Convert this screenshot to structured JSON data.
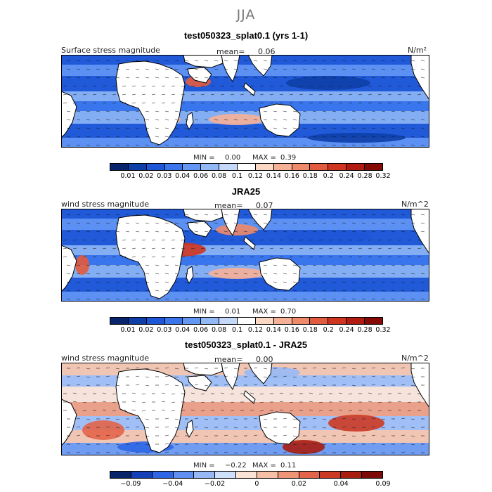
{
  "season": "JJA",
  "colors": {
    "seq": [
      "#08246b",
      "#0e3fa8",
      "#1d56d6",
      "#3a75ec",
      "#6397f4",
      "#92b8f6",
      "#c4d8fa",
      "#ffffff",
      "#fbd8c5",
      "#f6b096",
      "#ee8a6a",
      "#e35b3e",
      "#d03520",
      "#b21c10",
      "#850a06"
    ],
    "div": [
      "#08246b",
      "#1440b8",
      "#2e66e6",
      "#5f8ff0",
      "#98b8f5",
      "#cfe0fb",
      "#fbe3d6",
      "#f6bfa6",
      "#ee9577",
      "#e3644a",
      "#cd3a23",
      "#a81d10",
      "#7c0a06"
    ],
    "land": "#ffffff",
    "coast": "#000000",
    "arrow": "#1a1a1a"
  },
  "chart_data": [
    {
      "type": "heatmap",
      "title": "test050323_splat0.1 (yrs 1-1)",
      "left_label": "Surface stress magnitude",
      "mean_label": "mean=",
      "mean_value": "0.06",
      "units": "N/m²",
      "min_label": "MIN =",
      "min_value": "0.00",
      "max_label": "MAX =",
      "max_value": "0.39",
      "colorbar_levels": [
        "0.01",
        "0.02",
        "0.03",
        "0.04",
        "0.06",
        "0.08",
        "0.1",
        "0.12",
        "0.14",
        "0.16",
        "0.18",
        "0.2",
        "0.24",
        "0.28",
        "0.32"
      ]
    },
    {
      "type": "heatmap",
      "title": "JRA25",
      "left_label": "wind stress magnitude",
      "mean_label": "mean=",
      "mean_value": "0.07",
      "units": "N/m^2",
      "min_label": "MIN =",
      "min_value": "0.01",
      "max_label": "MAX =",
      "max_value": "0.70",
      "colorbar_levels": [
        "0.01",
        "0.02",
        "0.03",
        "0.04",
        "0.06",
        "0.08",
        "0.1",
        "0.12",
        "0.14",
        "0.16",
        "0.18",
        "0.2",
        "0.24",
        "0.28",
        "0.32"
      ]
    },
    {
      "type": "heatmap",
      "title": "test050323_splat0.1 - JRA25",
      "left_label": "wind stress magnitude",
      "mean_label": "mean=",
      "mean_value": "0.00",
      "units": "N/m^2",
      "min_label": "MIN =",
      "min_value": "−0.22",
      "max_label": "MAX =",
      "max_value": "0.11",
      "colorbar_levels": [
        "−0.09",
        "−0.04",
        "−0.02",
        "0",
        "0.02",
        "0.04",
        "0.09"
      ]
    }
  ]
}
